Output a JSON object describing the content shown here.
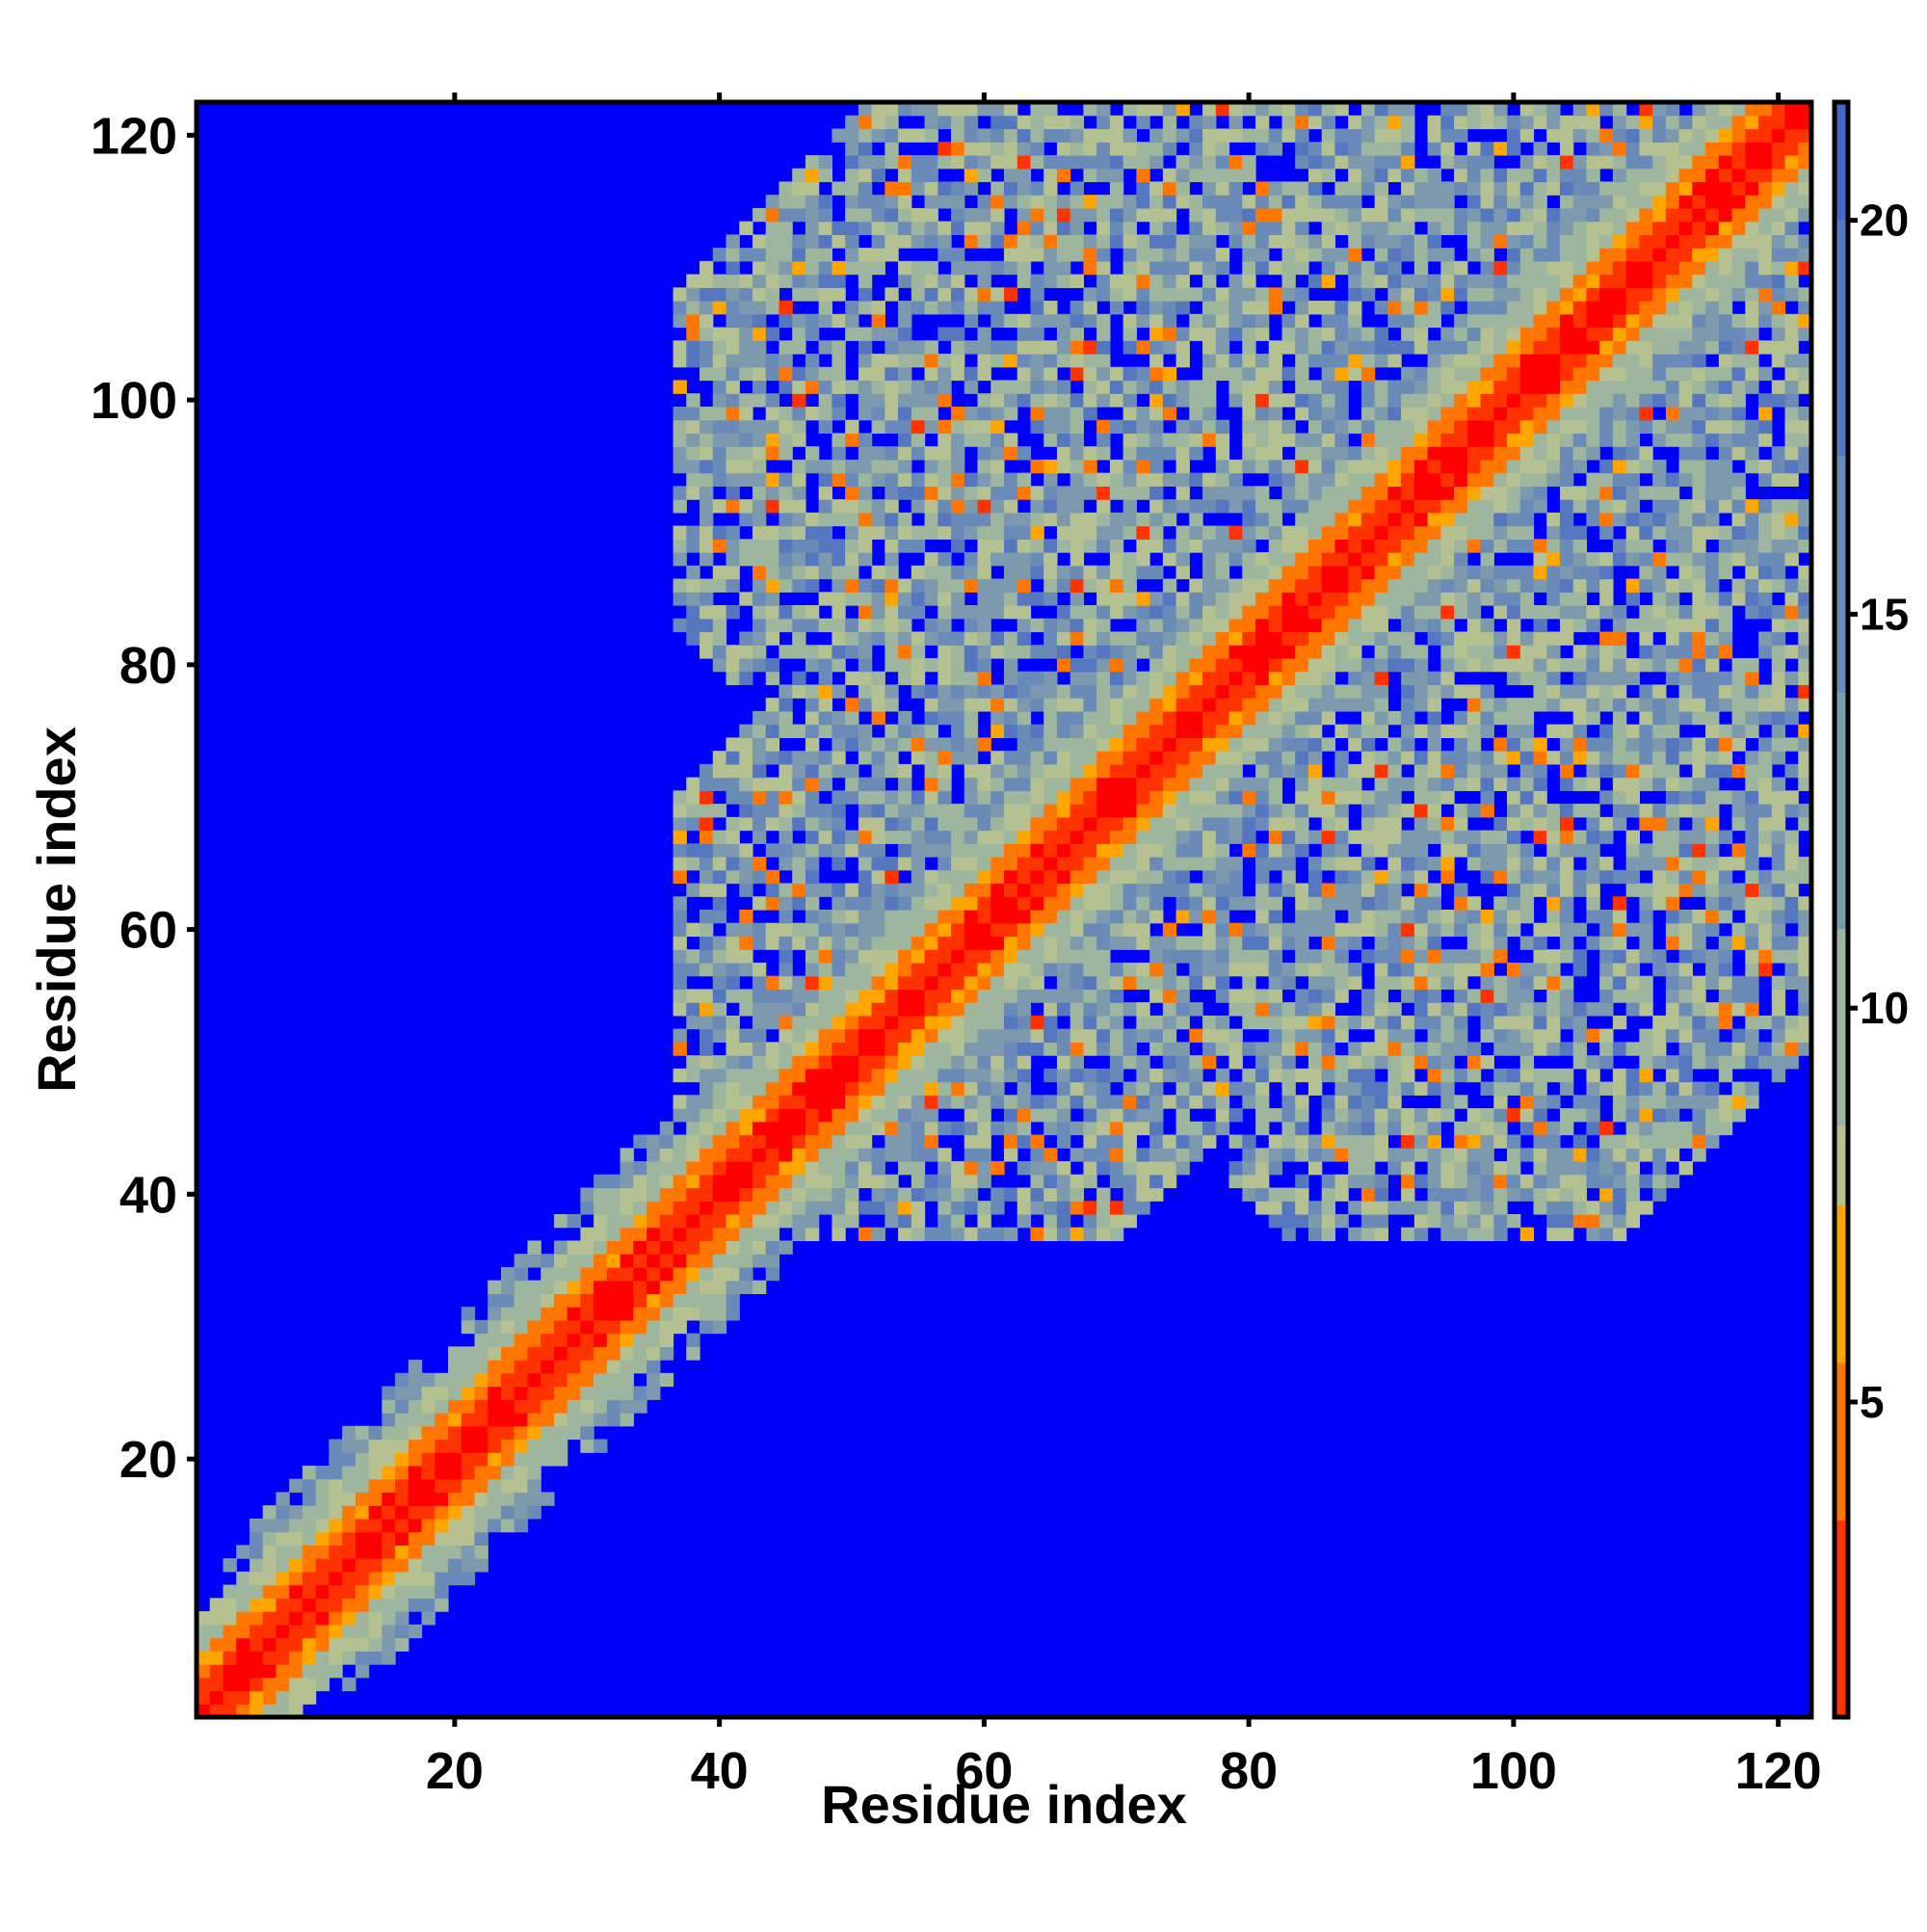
{
  "chart_data": {
    "type": "heatmap",
    "title": "",
    "xlabel": "Residue index",
    "ylabel": "Residue index",
    "n_residues": 122,
    "xlim": [
      1,
      122
    ],
    "ylim": [
      1,
      122
    ],
    "x_ticks": [
      20,
      40,
      60,
      80,
      100,
      120
    ],
    "y_ticks": [
      20,
      40,
      60,
      80,
      100,
      120
    ],
    "x_tick_labels": [
      "20",
      "40",
      "60",
      "80",
      "100",
      "120"
    ],
    "y_tick_labels": [
      "20",
      "40",
      "60",
      "80",
      "100",
      "120"
    ],
    "colorbar": {
      "range": [
        1,
        21.5
      ],
      "ticks": [
        5,
        10,
        15,
        20
      ],
      "tick_labels": [
        "5",
        "10",
        "15",
        "20"
      ],
      "stops": [
        {
          "value": 1.0,
          "color": "#ff0000"
        },
        {
          "value": 3.5,
          "color": "#ff3300"
        },
        {
          "value": 5.5,
          "color": "#ff7700"
        },
        {
          "value": 7.5,
          "color": "#ffa500"
        },
        {
          "value": 8.5,
          "color": "#b5c190"
        },
        {
          "value": 11.0,
          "color": "#9fb69e"
        },
        {
          "value": 14.0,
          "color": "#7d99ad"
        },
        {
          "value": 17.0,
          "color": "#6a8ab8"
        },
        {
          "value": 20.0,
          "color": "#5577c0"
        },
        {
          "value": 21.5,
          "color": "#4466c4"
        }
      ],
      "out_of_range_color": "#0000ff"
    },
    "regions": [
      {
        "name": "diagonal band",
        "x_range": [
          1,
          122
        ],
        "y_range": [
          1,
          122
        ]
      },
      {
        "name": "contact cluster 40-122",
        "x_range": [
          37,
          122
        ],
        "y_range": [
          37,
          122
        ]
      }
    ],
    "grid": false,
    "legend": "colorbar-right"
  }
}
